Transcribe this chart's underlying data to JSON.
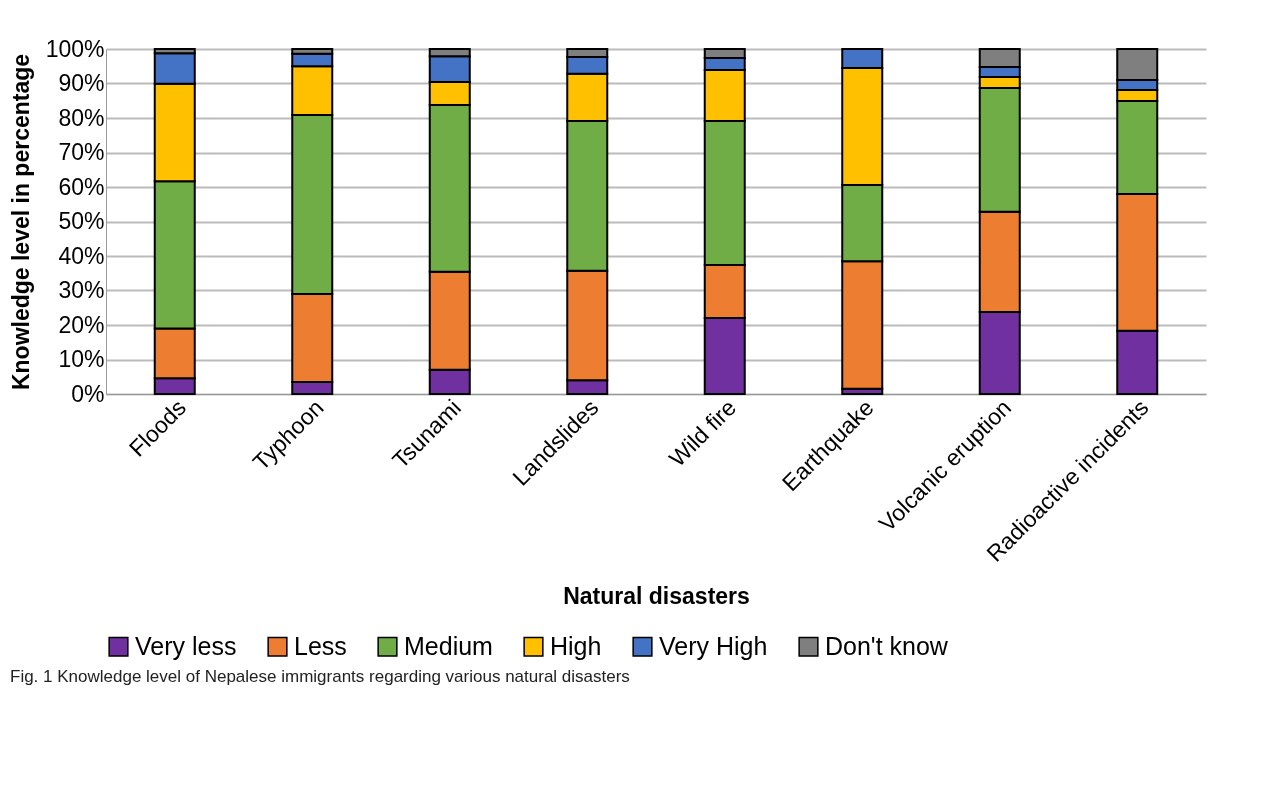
{
  "chart_data": {
    "type": "bar",
    "stacked": true,
    "xlabel": "Natural disasters",
    "ylabel": "Knowledge level in percentage",
    "categories": [
      "Floods",
      "Typhoon",
      "Tsunami",
      "Landslides",
      "Wild fire",
      "Earthquake",
      "Volcanic eruption",
      "Radioactive incidents"
    ],
    "series": [
      {
        "name": "Very less",
        "color": "#7030a0",
        "values": [
          4.6,
          3.5,
          7,
          4,
          22,
          1.5,
          23.8,
          18.3
        ]
      },
      {
        "name": "Less",
        "color": "#ed7d31",
        "values": [
          14.4,
          25.5,
          28.4,
          31.7,
          15.4,
          37,
          29,
          39.7
        ]
      },
      {
        "name": "Medium",
        "color": "#70ad47",
        "values": [
          42.7,
          51.9,
          48.4,
          43.4,
          41.7,
          22.1,
          35.9,
          26.9
        ]
      },
      {
        "name": "High",
        "color": "#ffc000",
        "values": [
          28.2,
          14.1,
          6.6,
          13.7,
          14.8,
          33.9,
          3.2,
          3.2
        ]
      },
      {
        "name": "Very High",
        "color": "#4472c4",
        "values": [
          8.9,
          3.6,
          7.5,
          4.9,
          3.5,
          5.5,
          2.9,
          2.9
        ]
      },
      {
        "name": "Don't know",
        "color": "#7f7f7f",
        "values": [
          1.2,
          1.4,
          2.1,
          2.3,
          2.6,
          null,
          5.2,
          9
        ]
      }
    ],
    "ylim": [
      0,
      100
    ],
    "yticks": [
      {
        "value": 0,
        "label": "0%"
      },
      {
        "value": 10,
        "label": "10%"
      },
      {
        "value": 20,
        "label": "20%"
      },
      {
        "value": 30,
        "label": "30%"
      },
      {
        "value": 40,
        "label": "40%"
      },
      {
        "value": 50,
        "label": "50%"
      },
      {
        "value": 60,
        "label": "60%"
      },
      {
        "value": 70,
        "label": "70%"
      },
      {
        "value": 80,
        "label": "80%"
      },
      {
        "value": 90,
        "label": "90%"
      },
      {
        "value": 100,
        "label": "100%"
      }
    ],
    "grid": "y",
    "legend": "bottom",
    "annotations": [
      "Fig. 1  Knowledge level of Nepalese immigrants regarding various natural disasters"
    ]
  }
}
